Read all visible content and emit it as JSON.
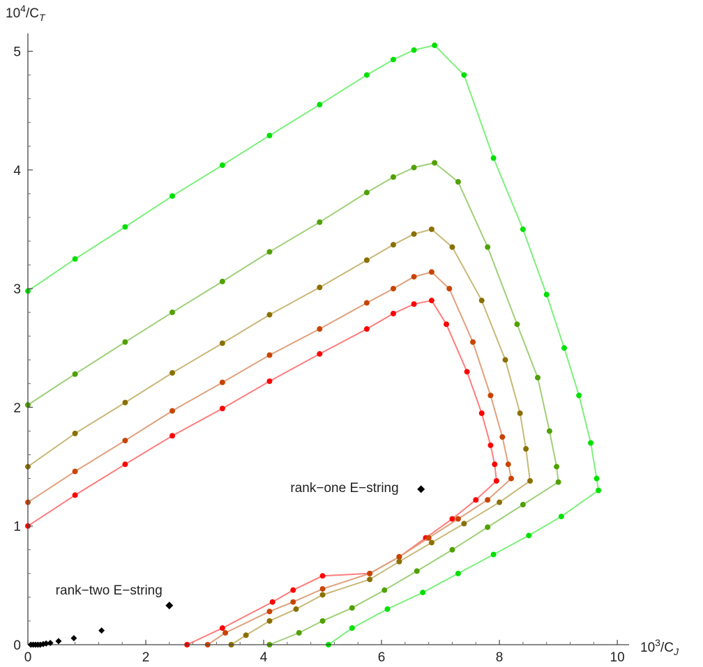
{
  "chart_data": {
    "type": "scatter",
    "title": "",
    "xlabel_base": "10",
    "xlabel_exp": "3",
    "xlabel_tail": "/C",
    "xlabel_sub": "J",
    "ylabel_base": "10",
    "ylabel_exp": "4",
    "ylabel_tail": "/C",
    "ylabel_sub": "T",
    "xlim": [
      0,
      10.2
    ],
    "ylim": [
      0,
      5.15
    ],
    "xticks": [
      0,
      2,
      4,
      6,
      8,
      10
    ],
    "yticks": [
      0,
      1,
      2,
      3,
      4,
      5
    ],
    "grid": false,
    "series": [
      {
        "color": "#ff0000",
        "line_color": "#ff7c7c",
        "points": [
          [
            0.0,
            1.0
          ],
          [
            0.8,
            1.26
          ],
          [
            1.65,
            1.52
          ],
          [
            2.45,
            1.76
          ],
          [
            3.3,
            1.99
          ],
          [
            4.1,
            2.22
          ],
          [
            4.95,
            2.45
          ],
          [
            5.75,
            2.66
          ],
          [
            6.2,
            2.79
          ],
          [
            6.55,
            2.87
          ],
          [
            6.85,
            2.9
          ],
          [
            7.1,
            2.7
          ],
          [
            7.45,
            2.3
          ],
          [
            7.7,
            1.95
          ],
          [
            7.85,
            1.68
          ],
          [
            7.92,
            1.52
          ],
          [
            7.95,
            1.38
          ],
          [
            7.6,
            1.22
          ],
          [
            7.2,
            1.06
          ],
          [
            6.75,
            0.9
          ],
          [
            6.3,
            0.74
          ],
          [
            5.8,
            0.6
          ],
          [
            5.0,
            0.58
          ],
          [
            4.5,
            0.46
          ],
          [
            4.15,
            0.36
          ],
          [
            3.3,
            0.14
          ],
          [
            2.7,
            0.0
          ]
        ]
      },
      {
        "color": "#c84400",
        "line_color": "#e0a07c",
        "points": [
          [
            0.0,
            1.2
          ],
          [
            0.8,
            1.46
          ],
          [
            1.65,
            1.72
          ],
          [
            2.45,
            1.97
          ],
          [
            3.3,
            2.21
          ],
          [
            4.1,
            2.44
          ],
          [
            4.95,
            2.66
          ],
          [
            5.75,
            2.88
          ],
          [
            6.2,
            3.0
          ],
          [
            6.55,
            3.1
          ],
          [
            6.85,
            3.14
          ],
          [
            7.15,
            3.0
          ],
          [
            7.55,
            2.55
          ],
          [
            7.85,
            2.1
          ],
          [
            8.05,
            1.75
          ],
          [
            8.15,
            1.52
          ],
          [
            8.2,
            1.4
          ],
          [
            7.8,
            1.22
          ],
          [
            7.3,
            1.06
          ],
          [
            6.8,
            0.9
          ],
          [
            6.3,
            0.74
          ],
          [
            5.8,
            0.6
          ],
          [
            5.0,
            0.47
          ],
          [
            4.5,
            0.36
          ],
          [
            4.1,
            0.28
          ],
          [
            3.35,
            0.1
          ],
          [
            3.05,
            0.0
          ]
        ]
      },
      {
        "color": "#8a7000",
        "line_color": "#c8b878",
        "points": [
          [
            0.0,
            1.5
          ],
          [
            0.8,
            1.78
          ],
          [
            1.65,
            2.04
          ],
          [
            2.45,
            2.29
          ],
          [
            3.3,
            2.54
          ],
          [
            4.1,
            2.78
          ],
          [
            4.95,
            3.01
          ],
          [
            5.75,
            3.24
          ],
          [
            6.2,
            3.37
          ],
          [
            6.55,
            3.46
          ],
          [
            6.85,
            3.5
          ],
          [
            7.2,
            3.35
          ],
          [
            7.7,
            2.9
          ],
          [
            8.1,
            2.4
          ],
          [
            8.35,
            1.95
          ],
          [
            8.45,
            1.65
          ],
          [
            8.52,
            1.38
          ],
          [
            8.0,
            1.2
          ],
          [
            7.4,
            1.02
          ],
          [
            6.85,
            0.86
          ],
          [
            6.3,
            0.7
          ],
          [
            5.8,
            0.55
          ],
          [
            5.0,
            0.42
          ],
          [
            4.55,
            0.3
          ],
          [
            4.1,
            0.2
          ],
          [
            3.7,
            0.08
          ],
          [
            3.45,
            0.0
          ]
        ]
      },
      {
        "color": "#50a000",
        "line_color": "#9fcf78",
        "points": [
          [
            0.0,
            2.02
          ],
          [
            0.8,
            2.28
          ],
          [
            1.65,
            2.55
          ],
          [
            2.45,
            2.8
          ],
          [
            3.3,
            3.06
          ],
          [
            4.1,
            3.31
          ],
          [
            4.95,
            3.56
          ],
          [
            5.75,
            3.81
          ],
          [
            6.2,
            3.94
          ],
          [
            6.55,
            4.02
          ],
          [
            6.9,
            4.06
          ],
          [
            7.3,
            3.9
          ],
          [
            7.8,
            3.35
          ],
          [
            8.3,
            2.7
          ],
          [
            8.65,
            2.25
          ],
          [
            8.85,
            1.8
          ],
          [
            8.97,
            1.5
          ],
          [
            9.0,
            1.37
          ],
          [
            8.4,
            1.18
          ],
          [
            7.8,
            0.99
          ],
          [
            7.2,
            0.8
          ],
          [
            6.6,
            0.62
          ],
          [
            6.05,
            0.46
          ],
          [
            5.5,
            0.31
          ],
          [
            5.0,
            0.2
          ],
          [
            4.6,
            0.1
          ],
          [
            4.1,
            0.0
          ]
        ]
      },
      {
        "color": "#00e000",
        "line_color": "#7cf07c",
        "points": [
          [
            0.0,
            2.98
          ],
          [
            0.8,
            3.25
          ],
          [
            1.65,
            3.52
          ],
          [
            2.45,
            3.78
          ],
          [
            3.3,
            4.04
          ],
          [
            4.1,
            4.29
          ],
          [
            4.95,
            4.55
          ],
          [
            5.75,
            4.8
          ],
          [
            6.2,
            4.93
          ],
          [
            6.55,
            5.01
          ],
          [
            6.9,
            5.05
          ],
          [
            7.4,
            4.8
          ],
          [
            7.9,
            4.1
          ],
          [
            8.4,
            3.5
          ],
          [
            8.8,
            2.95
          ],
          [
            9.1,
            2.5
          ],
          [
            9.35,
            2.1
          ],
          [
            9.55,
            1.7
          ],
          [
            9.65,
            1.4
          ],
          [
            9.68,
            1.3
          ],
          [
            9.05,
            1.08
          ],
          [
            8.5,
            0.92
          ],
          [
            7.9,
            0.76
          ],
          [
            7.3,
            0.6
          ],
          [
            6.7,
            0.44
          ],
          [
            6.1,
            0.3
          ],
          [
            5.5,
            0.14
          ],
          [
            5.1,
            0.0
          ]
        ]
      }
    ],
    "special_points": [
      {
        "x": 6.67,
        "y": 1.31,
        "label": "rank−one E−string",
        "anchor": "end",
        "dx": -32,
        "dy": -2
      },
      {
        "x": 2.4,
        "y": 0.33,
        "label": "rank−two E−string",
        "anchor": "end",
        "dx": -10,
        "dy": -22
      }
    ],
    "black_tail": [
      [
        0.05,
        0.0
      ],
      [
        0.09,
        0.0
      ],
      [
        0.13,
        0.0
      ],
      [
        0.17,
        0.0
      ],
      [
        0.21,
        0.0
      ],
      [
        0.26,
        0.005
      ],
      [
        0.31,
        0.01
      ],
      [
        0.38,
        0.015
      ],
      [
        0.52,
        0.03
      ],
      [
        0.78,
        0.055
      ],
      [
        1.25,
        0.12
      ]
    ]
  }
}
